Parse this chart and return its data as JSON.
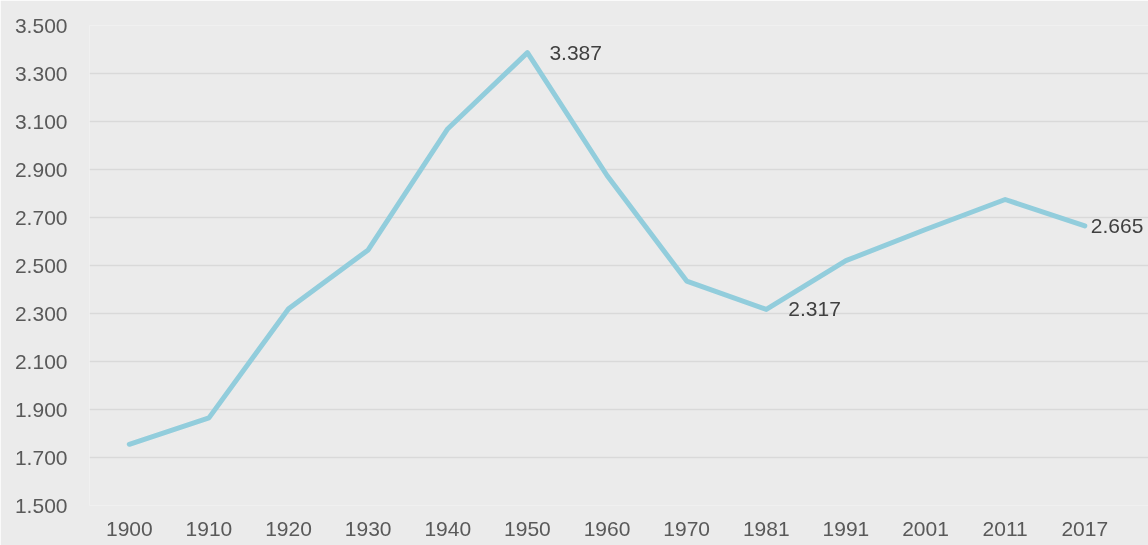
{
  "chart_data": {
    "type": "line",
    "categories": [
      "1900",
      "1910",
      "1920",
      "1930",
      "1940",
      "1950",
      "1960",
      "1970",
      "1981",
      "1991",
      "2001",
      "2011",
      "2017"
    ],
    "series": [
      {
        "color": "#92cddc",
        "values": [
          1755,
          1865,
          2320,
          2565,
          3070,
          3387,
          2875,
          2435,
          2317,
          2520,
          2650,
          2775,
          2665
        ],
        "value_labels": [
          null,
          null,
          null,
          null,
          null,
          "3.387",
          null,
          null,
          "2.317",
          null,
          null,
          null,
          "2.665"
        ]
      }
    ],
    "ylim": [
      1500,
      3500
    ],
    "yticks": [
      {
        "value": 1500,
        "label": "1.500"
      },
      {
        "value": 1700,
        "label": "1.700"
      },
      {
        "value": 1900,
        "label": "1.900"
      },
      {
        "value": 2100,
        "label": "2.100"
      },
      {
        "value": 2300,
        "label": "2.300"
      },
      {
        "value": 2500,
        "label": "2.500"
      },
      {
        "value": 2700,
        "label": "2.700"
      },
      {
        "value": 2900,
        "label": "2.900"
      },
      {
        "value": 3100,
        "label": "3.100"
      },
      {
        "value": 3300,
        "label": "3.300"
      },
      {
        "value": 3500,
        "label": "3.500"
      }
    ],
    "grid": "y"
  }
}
